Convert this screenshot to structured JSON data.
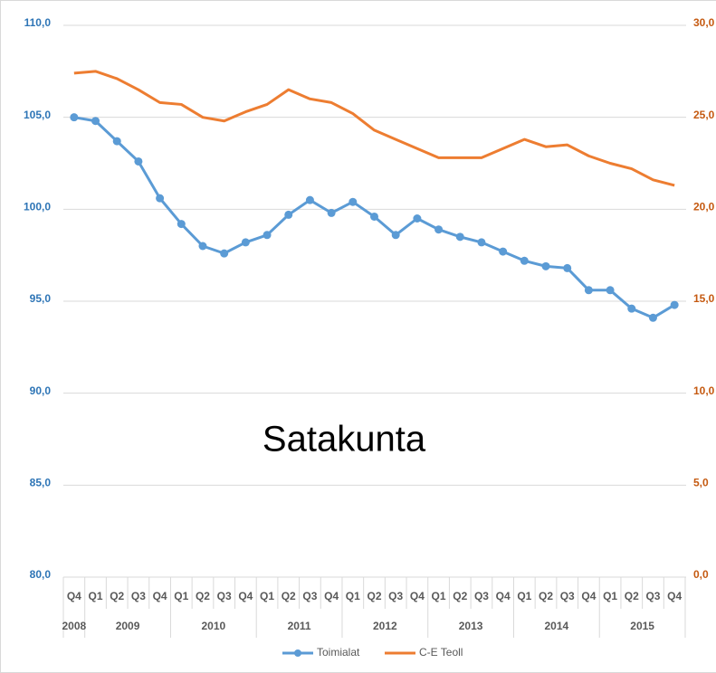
{
  "chart_data": {
    "type": "line",
    "annotation": "Satakunta",
    "categories": [
      "Q4",
      "Q1",
      "Q2",
      "Q3",
      "Q4",
      "Q1",
      "Q2",
      "Q3",
      "Q4",
      "Q1",
      "Q2",
      "Q3",
      "Q4",
      "Q1",
      "Q2",
      "Q3",
      "Q4",
      "Q1",
      "Q2",
      "Q3",
      "Q4",
      "Q1",
      "Q2",
      "Q3",
      "Q4",
      "Q1",
      "Q2",
      "Q3",
      "Q4"
    ],
    "years": [
      "2008",
      "2009",
      "2010",
      "2011",
      "2012",
      "2013",
      "2014",
      "2015"
    ],
    "series": [
      {
        "name": "Toimialat",
        "color": "#5b9bd5",
        "axis": "y",
        "values": [
          105.0,
          104.8,
          103.7,
          102.6,
          100.6,
          99.2,
          98.0,
          97.6,
          98.2,
          98.6,
          99.7,
          100.5,
          99.8,
          100.4,
          99.6,
          98.6,
          99.5,
          98.9,
          98.5,
          98.2,
          97.7,
          97.2,
          96.9,
          96.8,
          95.6,
          95.6,
          94.6,
          94.1,
          94.8
        ]
      },
      {
        "name": "C-E  Teoll",
        "color": "#ed7d31",
        "axis": "y2",
        "values": [
          27.4,
          27.5,
          27.1,
          26.5,
          25.8,
          25.7,
          25.0,
          24.8,
          25.3,
          25.7,
          26.5,
          26.0,
          25.8,
          25.2,
          24.3,
          23.8,
          23.3,
          22.8,
          22.8,
          22.8,
          23.3,
          23.8,
          23.4,
          23.5,
          22.9,
          22.5,
          22.2,
          21.6,
          21.3
        ]
      }
    ],
    "ylim": [
      80,
      110
    ],
    "yticks": [
      {
        "value": 80,
        "label": "80,0"
      },
      {
        "value": 85,
        "label": "85,0"
      },
      {
        "value": 90,
        "label": "90,0"
      },
      {
        "value": 95,
        "label": "95,0"
      },
      {
        "value": 100,
        "label": "100,0"
      },
      {
        "value": 105,
        "label": "105,0"
      },
      {
        "value": 110,
        "label": "110,0"
      }
    ],
    "y2lim": [
      0,
      30
    ],
    "y2ticks": [
      {
        "value": 0,
        "label": "0,0"
      },
      {
        "value": 5,
        "label": "5,0"
      },
      {
        "value": 10,
        "label": "10,0"
      },
      {
        "value": 15,
        "label": "15,0"
      },
      {
        "value": 20,
        "label": "20,0"
      },
      {
        "value": 25,
        "label": "25,0"
      },
      {
        "value": 30,
        "label": "30,0"
      }
    ],
    "grid": true,
    "legend": "bottom"
  }
}
